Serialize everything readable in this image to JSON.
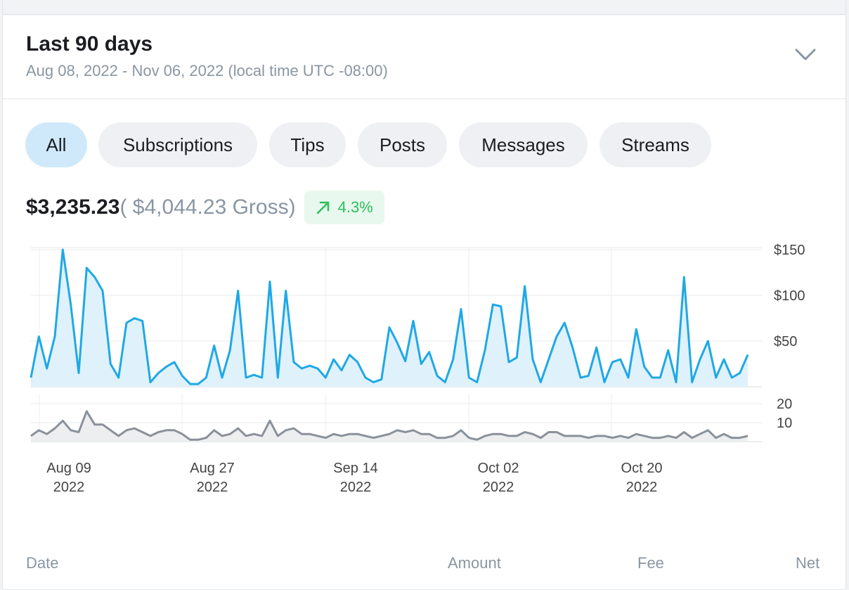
{
  "period": {
    "title": "Last 90 days",
    "range": "Aug 08, 2022 - Nov 06, 2022 (local time UTC -08:00)"
  },
  "filters": {
    "items": [
      {
        "label": "All",
        "active": true
      },
      {
        "label": "Subscriptions",
        "active": false
      },
      {
        "label": "Tips",
        "active": false
      },
      {
        "label": "Posts",
        "active": false
      },
      {
        "label": "Messages",
        "active": false
      },
      {
        "label": "Streams",
        "active": false
      }
    ]
  },
  "summary": {
    "net": "$3,235.23",
    "gross": "( $4,044.23 Gross)",
    "trend": "4.3%"
  },
  "chart_data": [
    {
      "type": "area",
      "title": "",
      "xlabel": "",
      "ylabel": "",
      "x_ticks": [
        "Aug 09\n2022",
        "Aug 27\n2022",
        "Sep 14\n2022",
        "Oct 02\n2022",
        "Oct 20\n2022"
      ],
      "y_ticks": [
        "$150",
        "$100",
        "$50"
      ],
      "ylim": [
        0,
        150
      ],
      "grid": true,
      "color": "#1fa8e6",
      "series": [
        {
          "values": [
            10,
            55,
            20,
            55,
            150,
            90,
            15,
            130,
            120,
            105,
            25,
            10,
            70,
            75,
            72,
            5,
            15,
            22,
            27,
            12,
            3,
            3,
            10,
            45,
            10,
            40,
            105,
            10,
            13,
            10,
            115,
            10,
            105,
            27,
            20,
            23,
            20,
            10,
            30,
            18,
            35,
            27,
            10,
            5,
            8,
            65,
            48,
            28,
            72,
            25,
            38,
            12,
            5,
            30,
            85,
            10,
            5,
            40,
            90,
            88,
            27,
            32,
            110,
            30,
            5,
            30,
            55,
            70,
            43,
            10,
            12,
            43,
            5,
            27,
            30,
            10,
            63,
            22,
            10,
            10,
            40,
            5,
            120,
            5,
            30,
            50,
            10,
            30,
            10,
            15,
            35
          ]
        }
      ]
    },
    {
      "type": "area",
      "title": "",
      "xlabel": "",
      "ylabel": "",
      "y_ticks": [
        "20",
        "10"
      ],
      "ylim": [
        0,
        20
      ],
      "grid": true,
      "color": "#8a919a",
      "series": [
        {
          "values": [
            3,
            6,
            4,
            7,
            11,
            6,
            5,
            16,
            9,
            9,
            6,
            3,
            6,
            7,
            5,
            3,
            5,
            6,
            6,
            4,
            1,
            1,
            2,
            6,
            3,
            4,
            7,
            3,
            4,
            3,
            11,
            3,
            6,
            7,
            4,
            4,
            3,
            2,
            4,
            3,
            4,
            4,
            3,
            2,
            3,
            4,
            6,
            5,
            6,
            4,
            4,
            2,
            2,
            3,
            6,
            2,
            1,
            3,
            4,
            4,
            3,
            3,
            5,
            4,
            2,
            5,
            5,
            3,
            3,
            3,
            2,
            3,
            3,
            2,
            3,
            2,
            4,
            3,
            2,
            2,
            3,
            2,
            5,
            2,
            4,
            6,
            2,
            4,
            2,
            2,
            3
          ]
        }
      ]
    }
  ],
  "table_header": {
    "date": "Date",
    "amount": "Amount",
    "fee": "Fee",
    "net": "Net"
  },
  "icons": {
    "expand": "chevron-down-icon",
    "trend": "arrow-up-right-icon"
  },
  "colors": {
    "accent": "#1fa8e6",
    "active_filter_bg": "#cfe9fb",
    "positive": "#2bc05c"
  }
}
